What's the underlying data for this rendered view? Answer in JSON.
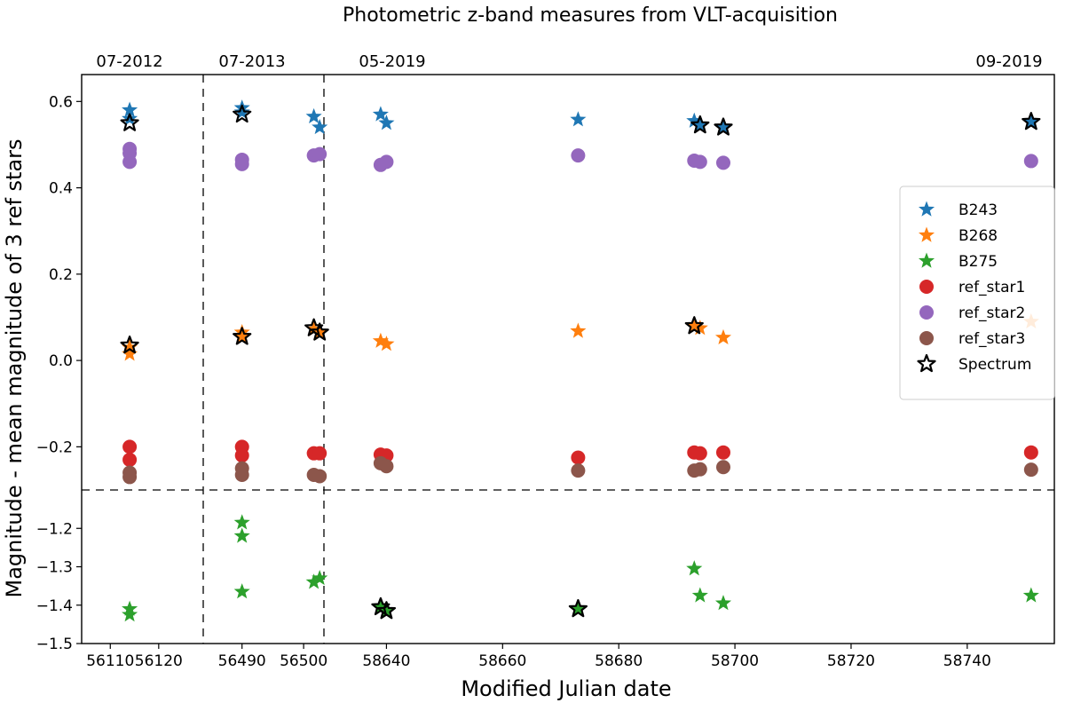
{
  "chart_data": {
    "type": "scatter",
    "title": "Photometric z-band measures from VLT-acquisition",
    "xlabel": "Modified Julian date",
    "ylabel": "Magnitude - mean magnitude of 3 ref stars",
    "grid": false,
    "legend_position": "right",
    "epoch_labels": [
      "07-2012",
      "07-2013",
      "05-2019",
      "09-2019"
    ],
    "panels": {
      "x_segments": [
        {
          "xlim": [
            56105,
            56127
          ],
          "ticks": [
            56110,
            56120
          ],
          "tick_labels": [
            "56110",
            "56120"
          ]
        },
        {
          "xlim": [
            56485,
            56502
          ],
          "ticks": [
            56490,
            56500
          ],
          "tick_labels": [
            "56490",
            "56500"
          ]
        },
        {
          "xlim": [
            58630,
            58755
          ],
          "ticks": [
            58640,
            58660,
            58680,
            58700,
            58720,
            58740
          ],
          "tick_labels": [
            "58640",
            "58660",
            "58680",
            "58700",
            "58720",
            "58740"
          ]
        }
      ],
      "y_segments": [
        {
          "ylim": [
            -0.3,
            0.65
          ],
          "ticks": [
            -0.2,
            0.0,
            0.2,
            0.4,
            0.6
          ],
          "tick_labels": [
            "−0.2",
            "0.0",
            "0.2",
            "0.4",
            "0.6"
          ]
        },
        {
          "ylim": [
            -1.5,
            -1.1
          ],
          "ticks": [
            -1.5,
            -1.4,
            -1.3,
            -1.2
          ],
          "tick_labels": [
            "−1.5",
            "−1.4",
            "−1.3",
            "−1.2"
          ]
        }
      ]
    },
    "series": [
      {
        "name": "B243",
        "marker": "star",
        "color": "#1f77b4",
        "points": [
          [
            56114,
            0.58
          ],
          [
            56114,
            0.56
          ],
          [
            56490,
            0.585
          ],
          [
            56490,
            0.575
          ],
          [
            58627.5,
            0.565
          ],
          [
            58628.5,
            0.54
          ],
          [
            58639,
            0.57
          ],
          [
            58640,
            0.55
          ],
          [
            58673,
            0.558
          ],
          [
            58693,
            0.555
          ],
          [
            58694,
            0.545
          ],
          [
            58698,
            0.54
          ],
          [
            58751,
            0.553
          ]
        ]
      },
      {
        "name": "B268",
        "marker": "star",
        "color": "#ff7f0e",
        "points": [
          [
            56114,
            0.03
          ],
          [
            56114,
            0.015
          ],
          [
            56490,
            0.065
          ],
          [
            56490,
            0.055
          ],
          [
            58627.5,
            0.072
          ],
          [
            58628.5,
            0.065
          ],
          [
            58639,
            0.045
          ],
          [
            58640,
            0.038
          ],
          [
            58673,
            0.068
          ],
          [
            58693,
            0.082
          ],
          [
            58694,
            0.075
          ],
          [
            58698,
            0.053
          ],
          [
            58751,
            0.09
          ]
        ]
      },
      {
        "name": "B275",
        "marker": "star",
        "color": "#2ca02c",
        "points": [
          [
            56114,
            -1.41
          ],
          [
            56114,
            -1.425
          ],
          [
            56490,
            -1.185
          ],
          [
            56490,
            -1.22
          ],
          [
            56490,
            -1.365
          ],
          [
            58627.5,
            -1.34
          ],
          [
            58628.5,
            -1.33
          ],
          [
            58639,
            -1.405
          ],
          [
            58640,
            -1.415
          ],
          [
            58673,
            -1.41
          ],
          [
            58693,
            -1.305
          ],
          [
            58694,
            -1.375
          ],
          [
            58698,
            -1.395
          ],
          [
            58751,
            -1.375
          ]
        ]
      },
      {
        "name": "ref_star1",
        "marker": "circle",
        "color": "#d62728",
        "points": [
          [
            56114,
            -0.2
          ],
          [
            56114,
            -0.23
          ],
          [
            56490,
            -0.2
          ],
          [
            56490,
            -0.22
          ],
          [
            58627.5,
            -0.215
          ],
          [
            58628.5,
            -0.215
          ],
          [
            58639,
            -0.218
          ],
          [
            58640,
            -0.22
          ],
          [
            58673,
            -0.225
          ],
          [
            58693,
            -0.213
          ],
          [
            58694,
            -0.215
          ],
          [
            58698,
            -0.213
          ],
          [
            58751,
            -0.213
          ]
        ]
      },
      {
        "name": "ref_star2",
        "marker": "circle",
        "color": "#9467bd",
        "points": [
          [
            56114,
            0.49
          ],
          [
            56114,
            0.48
          ],
          [
            56114,
            0.46
          ],
          [
            56490,
            0.465
          ],
          [
            56490,
            0.455
          ],
          [
            58627.5,
            0.475
          ],
          [
            58628.5,
            0.478
          ],
          [
            58639,
            0.453
          ],
          [
            58640,
            0.46
          ],
          [
            58673,
            0.475
          ],
          [
            58693,
            0.463
          ],
          [
            58694,
            0.46
          ],
          [
            58698,
            0.458
          ],
          [
            58751,
            0.462
          ]
        ]
      },
      {
        "name": "ref_star3",
        "marker": "circle",
        "color": "#8c564b",
        "points": [
          [
            56114,
            -0.26
          ],
          [
            56114,
            -0.27
          ],
          [
            56490,
            -0.25
          ],
          [
            56490,
            -0.265
          ],
          [
            58627.5,
            -0.265
          ],
          [
            58628.5,
            -0.268
          ],
          [
            58639,
            -0.238
          ],
          [
            58640,
            -0.245
          ],
          [
            58673,
            -0.255
          ],
          [
            58693,
            -0.255
          ],
          [
            58694,
            -0.252
          ],
          [
            58698,
            -0.247
          ],
          [
            58751,
            -0.253
          ]
        ]
      },
      {
        "name": "Spectrum",
        "marker": "star-outline",
        "color": "#000000",
        "points": [
          [
            56114,
            0.55
          ],
          [
            56114,
            0.035
          ],
          [
            56490,
            0.57
          ],
          [
            56490,
            0.055
          ],
          [
            58627.5,
            0.075
          ],
          [
            58628.5,
            0.065
          ],
          [
            58639,
            -1.405
          ],
          [
            58640,
            -1.415
          ],
          [
            58673,
            -1.41
          ],
          [
            58693,
            0.08
          ],
          [
            58694,
            0.545
          ],
          [
            58698,
            0.54
          ],
          [
            58751,
            0.553
          ]
        ]
      }
    ]
  }
}
